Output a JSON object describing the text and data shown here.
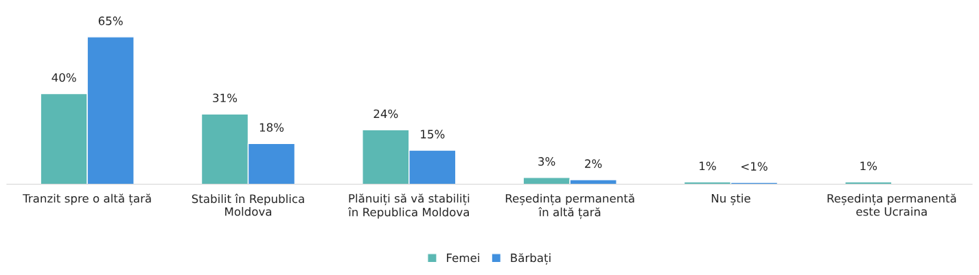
{
  "chart_data": {
    "type": "bar",
    "categories": [
      "Tranzit spre o altă țară",
      "Stabilit în Republica Moldova",
      "Plănuiți să vă stabiliți în Republica Moldova",
      "Reședința permanentă în altă țară",
      "Nu știe",
      "Reședința permanentă este Ucraina"
    ],
    "series": [
      {
        "name": "Femei",
        "color": "#5bb8b3",
        "values": [
          40,
          31,
          24,
          3,
          1,
          1
        ],
        "value_labels": [
          "40%",
          "31%",
          "24%",
          "3%",
          "1%",
          "1%"
        ]
      },
      {
        "name": "Bărbați",
        "color": "#4190de",
        "values": [
          65,
          18,
          15,
          2,
          0.8,
          null
        ],
        "value_labels": [
          "65%",
          "18%",
          "15%",
          "2%",
          "<1%",
          null
        ]
      }
    ],
    "legend": "bottom",
    "grid": false
  }
}
